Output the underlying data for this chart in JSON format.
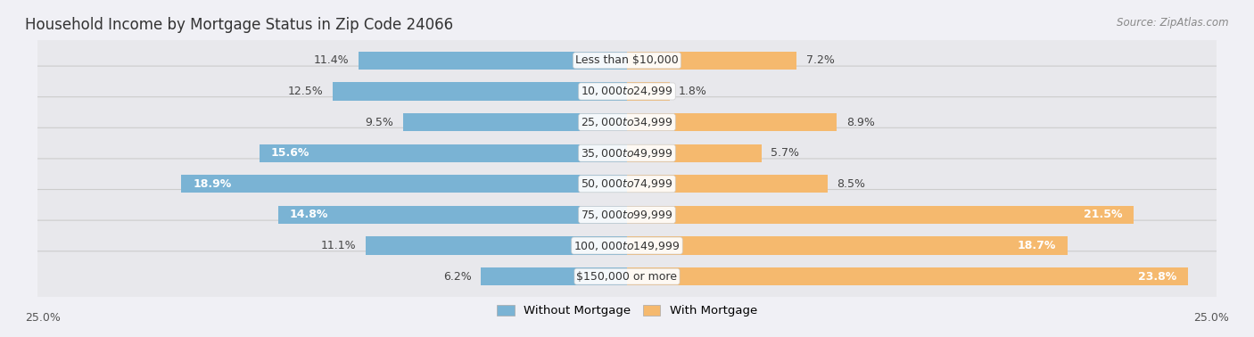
{
  "title": "Household Income by Mortgage Status in Zip Code 24066",
  "source": "Source: ZipAtlas.com",
  "categories": [
    "Less than $10,000",
    "$10,000 to $24,999",
    "$25,000 to $34,999",
    "$35,000 to $49,999",
    "$50,000 to $74,999",
    "$75,000 to $99,999",
    "$100,000 to $149,999",
    "$150,000 or more"
  ],
  "without_mortgage": [
    11.4,
    12.5,
    9.5,
    15.6,
    18.9,
    14.8,
    11.1,
    6.2
  ],
  "with_mortgage": [
    7.2,
    1.8,
    8.9,
    5.7,
    8.5,
    21.5,
    18.7,
    23.8
  ],
  "blue_color": "#7ab3d4",
  "orange_color": "#f5b96e",
  "row_bg": "#e8e8ec",
  "axis_label_left": "25.0%",
  "axis_label_right": "25.0%",
  "max_val": 25.0,
  "title_fontsize": 12,
  "label_fontsize": 9
}
